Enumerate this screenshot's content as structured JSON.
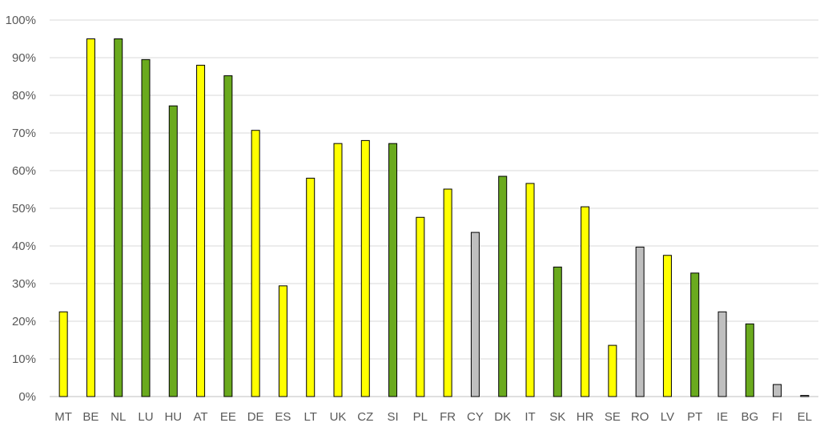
{
  "chart_data": {
    "type": "bar",
    "title": "",
    "xlabel": "",
    "ylabel": "",
    "ylim": [
      0,
      100
    ],
    "y_ticks": [
      "0%",
      "10%",
      "20%",
      "30%",
      "40%",
      "50%",
      "60%",
      "70%",
      "80%",
      "90%",
      "100%"
    ],
    "grid": true,
    "legend": "none",
    "colors": {
      "yellow": "#ffff00",
      "green": "#6aaa1e",
      "grey": "#bfbfbf"
    },
    "categories": [
      "MT",
      "BE",
      "NL",
      "LU",
      "HU",
      "AT",
      "EE",
      "DE",
      "ES",
      "LT",
      "UK",
      "CZ",
      "SI",
      "PL",
      "FR",
      "CY",
      "DK",
      "IT",
      "SK",
      "HR",
      "SE",
      "RO",
      "LV",
      "PT",
      "IE",
      "BG",
      "FI",
      "EL"
    ],
    "values": [
      22.5,
      95,
      95,
      89.5,
      77.2,
      88,
      85.2,
      70.7,
      29.4,
      58,
      67.2,
      68,
      67.2,
      47.6,
      55.1,
      43.6,
      58.5,
      56.6,
      34.4,
      50.4,
      13.6,
      39.7,
      37.5,
      32.8,
      22.5,
      19.3,
      3.2,
      0.3
    ],
    "bar_colors": [
      "yellow",
      "yellow",
      "green",
      "green",
      "green",
      "yellow",
      "green",
      "yellow",
      "yellow",
      "yellow",
      "yellow",
      "yellow",
      "green",
      "yellow",
      "yellow",
      "grey",
      "green",
      "yellow",
      "green",
      "yellow",
      "yellow",
      "grey",
      "yellow",
      "green",
      "grey",
      "green",
      "grey",
      "grey"
    ]
  }
}
